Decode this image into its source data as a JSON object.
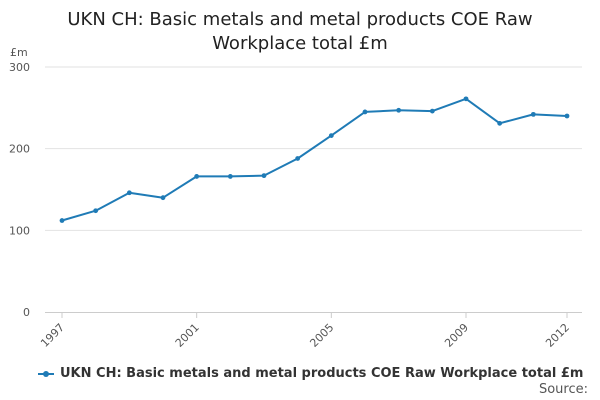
{
  "chart_data": {
    "type": "line",
    "title_line1": "UKN CH: Basic metals and metal products COE Raw",
    "title_line2": "Workplace total £m",
    "ylabel": "£m",
    "ylim": [
      0,
      300
    ],
    "yticks": [
      0,
      100,
      200,
      300
    ],
    "xticks": [
      "1997",
      "2001",
      "2005",
      "2009",
      "2012"
    ],
    "grid": true,
    "legend_position": "bottom-left",
    "series": [
      {
        "name": "UKN CH: Basic metals and metal products COE Raw Workplace total £m",
        "color": "#1f7bb6",
        "x": [
          1997,
          1998,
          1999,
          2000,
          2001,
          2002,
          2003,
          2004,
          2005,
          2006,
          2007,
          2008,
          2009,
          2010,
          2011,
          2012
        ],
        "values": [
          112,
          124,
          146,
          140,
          166,
          166,
          167,
          188,
          216,
          245,
          247,
          246,
          261,
          231,
          242,
          240
        ]
      }
    ]
  },
  "source_label": "Source:"
}
